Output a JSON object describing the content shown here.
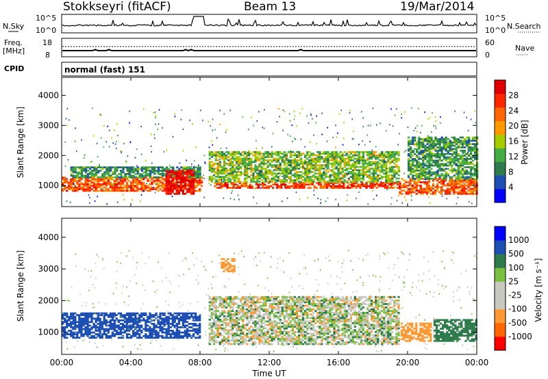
{
  "header": {
    "station": "Stokkseyri (fitACF)",
    "beam": "Beam 13",
    "date": "19/Mar/2014"
  },
  "strip": {
    "nsky_label": "N.Sky",
    "nsky_ticks": [
      "10^5",
      "10^0"
    ],
    "nsearch_label": "N.Search",
    "nsearch_ticks": [
      "10^5",
      "10^0"
    ],
    "freq_label_1": "Freq.",
    "freq_label_2": "[MHz]",
    "freq_ticks": [
      "18",
      "8"
    ],
    "nave_label": "Nave",
    "nave_ticks": [
      "60",
      "0"
    ],
    "cpid_label": "CPID",
    "cpid_value": "normal (fast) 151"
  },
  "colors": {
    "power": [
      "#0000ff",
      "#1d4fb5",
      "#2e7b4c",
      "#44ad44",
      "#a6cc00",
      "#ff9900",
      "#ff6600",
      "#ff2600",
      "#e00000"
    ],
    "velocity": [
      "#ff0000",
      "#ff6600",
      "#ff9933",
      "#c8c8c0",
      "#c8c8c0",
      "#7ac142",
      "#2e7b4c",
      "#1d4fb5",
      "#0000ff"
    ]
  },
  "chart_data": [
    {
      "type": "heatmap",
      "panel": "power",
      "ylabel": "Slant Range [km]",
      "yticks": [
        "4000",
        "3000",
        "2000",
        "1000"
      ],
      "ylim": [
        300,
        4600
      ],
      "xlim_hours": [
        0,
        24
      ],
      "colorbar_label": "Power [dB]",
      "colorbar_ticks": [
        "28",
        "24",
        "20",
        "16",
        "12",
        "8",
        "4"
      ],
      "colorbar_range": [
        0,
        32
      ],
      "bands": [
        {
          "t0": 0.0,
          "t1": 8.1,
          "r0": 800,
          "r1": 1250,
          "level": 24
        },
        {
          "t0": 0.5,
          "t1": 8.0,
          "r0": 1250,
          "r1": 1600,
          "level": 10
        },
        {
          "t0": 6.0,
          "t1": 7.6,
          "r0": 700,
          "r1": 1500,
          "level": 30
        },
        {
          "t0": 8.8,
          "t1": 19.5,
          "r0": 900,
          "r1": 1100,
          "level": 26
        },
        {
          "t0": 8.5,
          "t1": 19.5,
          "r0": 1100,
          "r1": 2100,
          "level": 14
        },
        {
          "t0": 19.5,
          "t1": 24.0,
          "r0": 700,
          "r1": 1200,
          "level": 24
        },
        {
          "t0": 20.0,
          "t1": 24.0,
          "r0": 1200,
          "r1": 2600,
          "level": 11
        }
      ]
    },
    {
      "type": "heatmap",
      "panel": "velocity",
      "ylabel": "Slant Range [km]",
      "yticks": [
        "4000",
        "3000",
        "2000",
        "1000"
      ],
      "ylim": [
        300,
        4600
      ],
      "xlim_hours": [
        0,
        24
      ],
      "xticks": [
        "00:00",
        "04:00",
        "08:00",
        "12:00",
        "16:00",
        "20:00",
        "00:00"
      ],
      "xlabel": "Time UT",
      "colorbar_label": "Velocity [m s⁻¹]",
      "colorbar_ticks": [
        "1000",
        "500",
        "100",
        "25",
        "-25",
        "-100",
        "-500",
        "-1000"
      ],
      "bands": [
        {
          "t0": 0.0,
          "t1": 8.0,
          "r0": 800,
          "r1": 1600,
          "vel": 700
        },
        {
          "t0": 9.2,
          "t1": 10.0,
          "r0": 2900,
          "r1": 3300,
          "vel": -300
        },
        {
          "t0": 8.5,
          "t1": 19.5,
          "r0": 600,
          "r1": 2100,
          "vel": 0
        },
        {
          "t0": 19.6,
          "t1": 21.3,
          "r0": 700,
          "r1": 1300,
          "vel": -300
        },
        {
          "t0": 21.5,
          "t1": 24.0,
          "r0": 700,
          "r1": 1400,
          "vel": 300
        }
      ]
    }
  ]
}
